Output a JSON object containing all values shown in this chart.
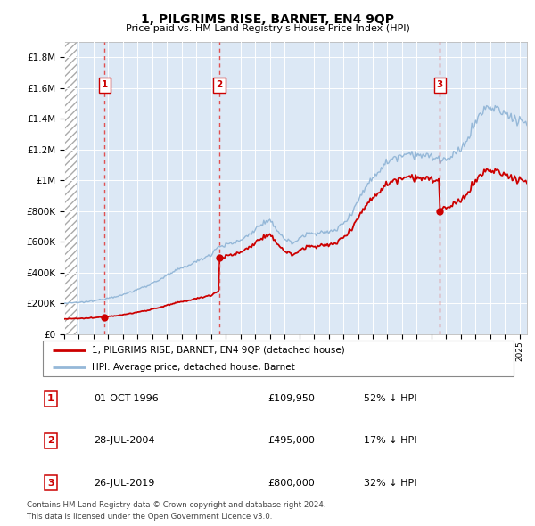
{
  "title": "1, PILGRIMS RISE, BARNET, EN4 9QP",
  "subtitle": "Price paid vs. HM Land Registry's House Price Index (HPI)",
  "ylabel_ticks": [
    "£0",
    "£200K",
    "£400K",
    "£600K",
    "£800K",
    "£1M",
    "£1.2M",
    "£1.4M",
    "£1.6M",
    "£1.8M"
  ],
  "ytick_values": [
    0,
    200000,
    400000,
    600000,
    800000,
    1000000,
    1200000,
    1400000,
    1600000,
    1800000
  ],
  "ylim": [
    0,
    1900000
  ],
  "xlim_start": 1994.0,
  "xlim_end": 2025.5,
  "sale_dates": [
    1996.75,
    2004.57,
    2019.57
  ],
  "sale_prices": [
    109950,
    495000,
    800000
  ],
  "sale_labels": [
    "1",
    "2",
    "3"
  ],
  "sale_info": [
    {
      "label": "1",
      "date": "01-OCT-1996",
      "price": "£109,950",
      "pct": "52% ↓ HPI"
    },
    {
      "label": "2",
      "date": "28-JUL-2004",
      "price": "£495,000",
      "pct": "17% ↓ HPI"
    },
    {
      "label": "3",
      "date": "26-JUL-2019",
      "price": "£800,000",
      "pct": "32% ↓ HPI"
    }
  ],
  "hpi_color": "#95b8d8",
  "price_color": "#cc0000",
  "dashed_line_color": "#e05050",
  "bg_plot_color": "#dce8f5",
  "grid_color": "#ffffff",
  "legend_line1": "1, PILGRIMS RISE, BARNET, EN4 9QP (detached house)",
  "legend_line2": "HPI: Average price, detached house, Barnet",
  "footer1": "Contains HM Land Registry data © Crown copyright and database right 2024.",
  "footer2": "This data is licensed under the Open Government Licence v3.0."
}
